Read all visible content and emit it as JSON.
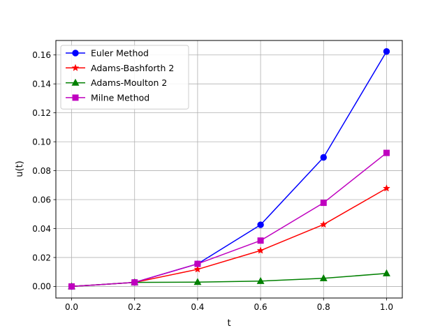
{
  "chart_data": {
    "type": "line",
    "xlabel": "t",
    "ylabel": "u(t)",
    "xlim": [
      -0.05,
      1.05
    ],
    "ylim": [
      -0.008,
      0.17
    ],
    "grid": true,
    "legend_position": "top-left",
    "x": [
      0.0,
      0.2,
      0.4,
      0.6,
      0.8,
      1.0
    ],
    "x_ticks": [
      0.0,
      0.2,
      0.4,
      0.6,
      0.8,
      1.0
    ],
    "x_tick_labels": [
      "0.0",
      "0.2",
      "0.4",
      "0.6",
      "0.8",
      "1.0"
    ],
    "y_ticks": [
      0.0,
      0.02,
      0.04,
      0.06,
      0.08,
      0.1,
      0.12,
      0.14,
      0.16
    ],
    "y_tick_labels": [
      "0.00",
      "0.02",
      "0.04",
      "0.06",
      "0.08",
      "0.10",
      "0.12",
      "0.14",
      "0.16"
    ],
    "series": [
      {
        "name": "Euler Method",
        "color": "#0000ff",
        "marker": "circle",
        "values": [
          0.0,
          0.0028,
          0.0156,
          0.0426,
          0.0892,
          0.1624
        ]
      },
      {
        "name": "Adams-Bashforth 2",
        "color": "#ff0000",
        "marker": "star",
        "values": [
          0.0,
          0.0028,
          0.0118,
          0.0248,
          0.0428,
          0.0678
        ]
      },
      {
        "name": "Adams-Moulton 2",
        "color": "#008000",
        "marker": "triangle",
        "values": [
          0.0,
          0.0028,
          0.003,
          0.0037,
          0.0056,
          0.009
        ]
      },
      {
        "name": "Milne Method",
        "color": "#bf00bf",
        "marker": "square",
        "values": [
          0.0,
          0.0028,
          0.0156,
          0.0317,
          0.0578,
          0.0923
        ]
      }
    ]
  }
}
